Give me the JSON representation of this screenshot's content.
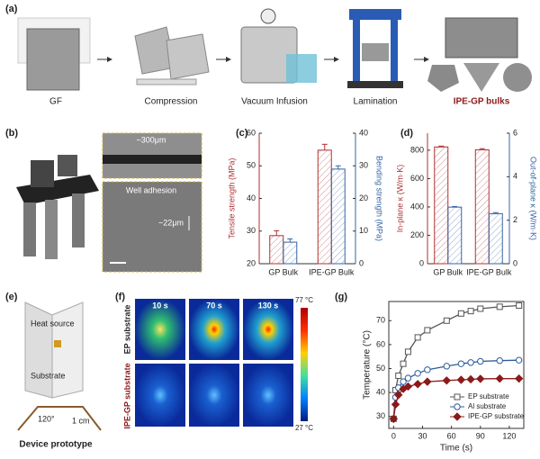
{
  "panel_labels": [
    "(a)",
    "(b)",
    "(c)",
    "(d)",
    "(e)",
    "(f)",
    "(g)"
  ],
  "a": {
    "steps": [
      "GF",
      "Compression",
      "Vacuum Infusion",
      "Lamination",
      "IPE-GP bulks"
    ]
  },
  "b": {
    "scale": "~300μm",
    "title": "Well adhesion",
    "layer": "~22μm"
  },
  "e": {
    "heat_source": "Heat source",
    "substrate": "Substrate",
    "angle": "120°",
    "length": "1 cm",
    "caption": "Device prototype"
  },
  "f": {
    "times": [
      "10 s",
      "70 s",
      "130 s"
    ],
    "rows": [
      "EP substrate",
      "IPE-GP substrate"
    ],
    "colorbar": [
      "77 °C",
      "27 °C"
    ]
  },
  "chart_data": [
    {
      "type": "bar",
      "categories": [
        "GP Bulk",
        "IPE-GP Bulk"
      ],
      "ylabel": "Tensile strength (MPa)",
      "y2label": "Bending strength (MPa)",
      "ylim": [
        20,
        60
      ],
      "yticks": [
        20,
        30,
        40,
        50,
        60
      ],
      "y2lim": [
        0,
        40
      ],
      "y2ticks": [
        0,
        10,
        20,
        30,
        40
      ],
      "series": [
        {
          "color": "#b03030",
          "values": [
            28.6,
            54.8
          ],
          "errors": [
            1.5,
            1.8
          ]
        },
        {
          "color": "#3565a5",
          "axis": "y2",
          "values": [
            6.6,
            29
          ],
          "errors": [
            1.0,
            1.0
          ]
        }
      ]
    },
    {
      "type": "bar",
      "categories": [
        "GP Bulk",
        "IPE-GP Bulk"
      ],
      "ylabel": "In-plane κ (W/m·K)",
      "y2label": "Out-of-plane κ (W/m·K)",
      "ylim": [
        0,
        920
      ],
      "yticks": [
        0,
        200,
        400,
        600,
        800
      ],
      "y2lim": [
        0,
        6
      ],
      "y2ticks": [
        0,
        2,
        4,
        6
      ],
      "series": [
        {
          "color": "#b03030",
          "values": [
            823,
            803
          ],
          "errors": [
            6,
            8
          ]
        },
        {
          "color": "#3565a5",
          "axis": "y2",
          "values": [
            2.6,
            2.3
          ],
          "errors": [
            0.03,
            0.05
          ]
        }
      ]
    },
    {
      "type": "line",
      "xlabel": "Time (s)",
      "ylabel": "Temperature (°C)",
      "x": [
        0,
        2,
        5,
        10,
        15,
        25,
        35,
        55,
        70,
        80,
        90,
        110,
        130
      ],
      "xlim": [
        -5,
        135
      ],
      "xticks": [
        0,
        30,
        60,
        90,
        120
      ],
      "ylim": [
        25,
        78
      ],
      "yticks": [
        30,
        40,
        50,
        60,
        70
      ],
      "legend": "lower right",
      "series": [
        {
          "name": "EP substrate",
          "color": "#555555",
          "marker": "square",
          "values": [
            29,
            41,
            47,
            52,
            57,
            63,
            66,
            70,
            73,
            74,
            75,
            75.8,
            76.3
          ]
        },
        {
          "name": "Al substrate",
          "color": "#2a5c9a",
          "marker": "circle",
          "values": [
            29,
            38,
            42,
            44.5,
            46,
            48,
            49.5,
            51,
            52,
            52.5,
            53,
            53.3,
            53.5
          ]
        },
        {
          "name": "IPE-GP substrate",
          "color": "#8b1a1a",
          "marker": "diamond",
          "values": [
            29,
            35,
            39,
            41.5,
            42.5,
            43.5,
            44.5,
            45,
            45.3,
            45.5,
            45.7,
            45.8,
            45.8
          ]
        }
      ]
    }
  ]
}
